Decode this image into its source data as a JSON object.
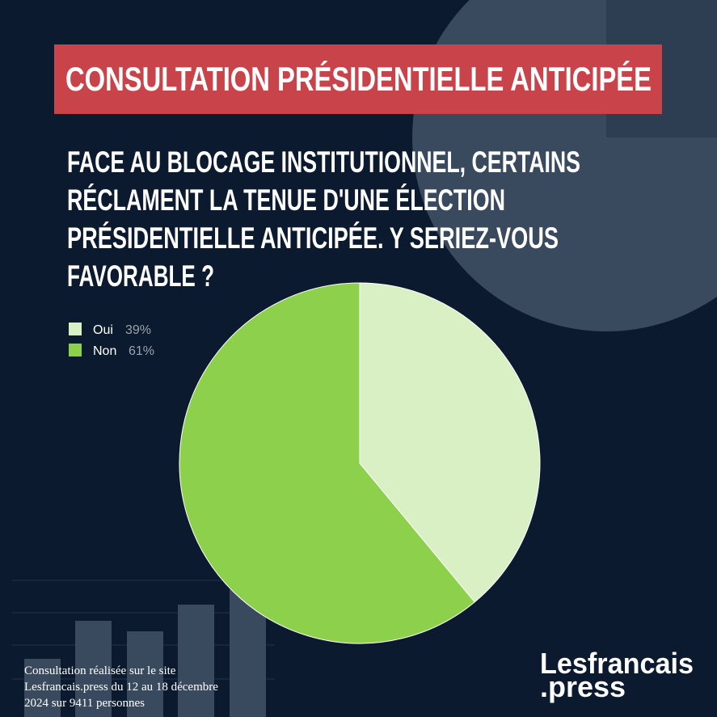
{
  "chart_data": {
    "type": "pie",
    "title": "CONSULTATION PRÉSIDENTIELLE ANTICIPÉE",
    "subtitle": [
      "FACE AU BLOCAGE INSTITUTIONNEL, CERTAINS",
      "RÉCLAMENT LA TENUE D'UNE ÉLECTION",
      "PRÉSIDENTIELLE ANTICIPÉE. Y SERIEZ-VOUS",
      "FAVORABLE ?"
    ],
    "categories": [
      "Oui",
      "Non"
    ],
    "values": [
      39,
      61
    ],
    "value_labels": [
      "39%",
      "61%"
    ],
    "colors": [
      "#d9efc4",
      "#8dd04b"
    ],
    "legend": "top-left"
  },
  "source": [
    " Consultation réalisée sur le site",
    "Lesfrancais.press du 12 au 18 décembre",
    "2024 sur 9411 personnes"
  ],
  "logo": [
    "Lesfrancais",
    ".press"
  ]
}
